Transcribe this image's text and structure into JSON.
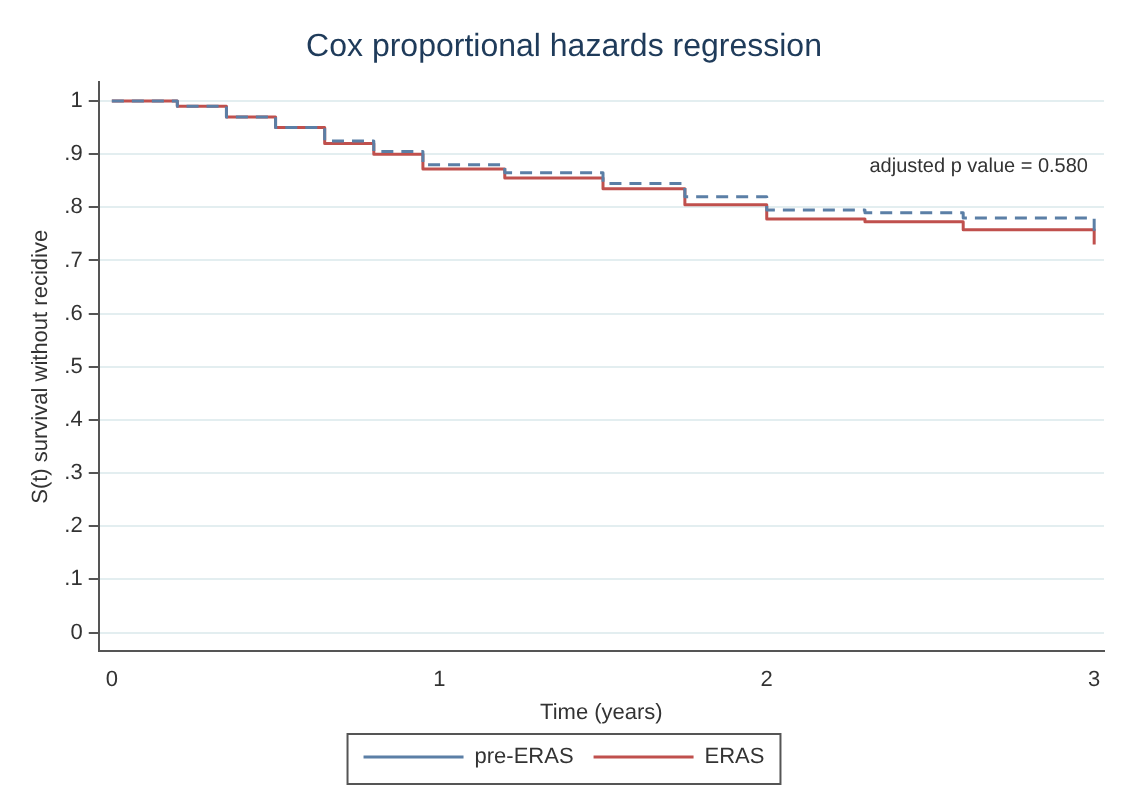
{
  "chart_data": {
    "type": "step",
    "title": "Cox proportional hazards regression",
    "xlabel": "Time (years)",
    "ylabel": "S(t) survival without recidive",
    "xlim": [
      -0.04,
      3.03
    ],
    "xticks": [
      0,
      1,
      2,
      3
    ],
    "ylim": [
      -0.035,
      1.035
    ],
    "yticks": [
      {
        "value": 0,
        "label": "0"
      },
      {
        "value": 0.1,
        "label": ".1"
      },
      {
        "value": 0.2,
        "label": ".2"
      },
      {
        "value": 0.3,
        "label": ".3"
      },
      {
        "value": 0.4,
        "label": ".4"
      },
      {
        "value": 0.5,
        "label": ".5"
      },
      {
        "value": 0.6,
        "label": ".6"
      },
      {
        "value": 0.7,
        "label": ".7"
      },
      {
        "value": 0.8,
        "label": ".8"
      },
      {
        "value": 0.9,
        "label": ".9"
      },
      {
        "value": 1,
        "label": "1"
      }
    ],
    "grid": "y",
    "legend": "bottom",
    "annotations": [
      "adjusted p value = 0.580"
    ],
    "series": [
      {
        "name": "pre-ERAS",
        "color": "#5b7fa6",
        "line_style": "dashed",
        "x": [
          0,
          0.12,
          0.2,
          0.35,
          0.5,
          0.65,
          0.8,
          0.95,
          1.2,
          1.5,
          1.75,
          2.0,
          2.3,
          2.6,
          3.0
        ],
        "values": [
          1,
          1,
          0.99,
          0.97,
          0.95,
          0.925,
          0.905,
          0.88,
          0.865,
          0.845,
          0.82,
          0.795,
          0.79,
          0.78,
          0.755
        ]
      },
      {
        "name": "ERAS",
        "color": "#c0504d",
        "line_style": "solid",
        "x": [
          0,
          0.12,
          0.2,
          0.35,
          0.5,
          0.65,
          0.8,
          0.95,
          1.2,
          1.5,
          1.75,
          2.0,
          2.3,
          2.6,
          3.0
        ],
        "values": [
          1,
          1,
          0.99,
          0.97,
          0.95,
          0.92,
          0.9,
          0.872,
          0.855,
          0.835,
          0.805,
          0.778,
          0.773,
          0.758,
          0.73
        ]
      }
    ]
  }
}
